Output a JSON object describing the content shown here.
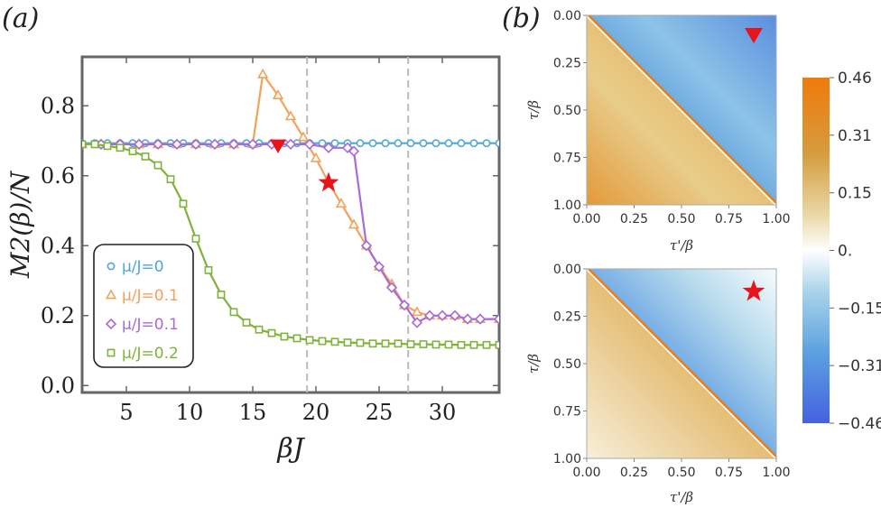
{
  "panel_labels": [
    "(a)",
    "(b)"
  ],
  "colors": {
    "blue": "#4fa7d8",
    "orange": "#f2a25a",
    "purple": "#a86bd6",
    "green": "#7fb33b",
    "marker_red": "#e8141b",
    "frame": "#666666",
    "vline": "#bbbbbb"
  },
  "chart_data": [
    {
      "type": "line",
      "panel": "(a)",
      "xlabel": "βJ",
      "ylabel": "M2(β)/N",
      "xlim": [
        1.5,
        34.5
      ],
      "ylim": [
        -0.02,
        0.94
      ],
      "xticks": [
        5,
        10,
        15,
        20,
        25,
        30
      ],
      "xtick_labels": [
        "5",
        "10",
        "15",
        "20",
        "25",
        "30"
      ],
      "yticks": [
        0.0,
        0.2,
        0.4,
        0.6,
        0.8
      ],
      "ytick_labels": [
        "0.0",
        "0.2",
        "0.4",
        "0.6",
        "0.8"
      ],
      "vlines": [
        19.3,
        27.3
      ],
      "legend_position": "lower-left",
      "series": [
        {
          "name": "μ/J=0",
          "marker": "circle",
          "color": "#4fa7d8",
          "x": [
            1.5,
            2.5,
            3.5,
            4.5,
            5.5,
            6.5,
            7.5,
            8.5,
            9.5,
            10.5,
            11.5,
            12.5,
            13.5,
            14.5,
            15.5,
            16.5,
            17.5,
            18.5,
            19.5,
            20.5,
            21.5,
            22.5,
            23.5,
            24.5,
            25.5,
            26.5,
            27.5,
            28.5,
            29.5,
            30.5,
            31.5,
            32.5,
            33.5,
            34.5
          ],
          "y": [
            0.693,
            0.693,
            0.693,
            0.693,
            0.693,
            0.693,
            0.693,
            0.693,
            0.693,
            0.693,
            0.693,
            0.693,
            0.693,
            0.693,
            0.693,
            0.693,
            0.693,
            0.693,
            0.693,
            0.693,
            0.693,
            0.693,
            0.693,
            0.693,
            0.693,
            0.693,
            0.693,
            0.693,
            0.693,
            0.693,
            0.693,
            0.693,
            0.693,
            0.693
          ]
        },
        {
          "name": "μ/J=0.1",
          "marker": "triangle",
          "color": "#f2a25a",
          "x": [
            1.5,
            3,
            4.5,
            6,
            7.5,
            9,
            10.5,
            12,
            13.5,
            15,
            15.8,
            17,
            18,
            19,
            20,
            21,
            22,
            23,
            24,
            25,
            26,
            27,
            28,
            29,
            30,
            31,
            32,
            33,
            34.5
          ],
          "y": [
            0.69,
            0.69,
            0.69,
            0.69,
            0.69,
            0.69,
            0.69,
            0.69,
            0.69,
            0.69,
            0.89,
            0.83,
            0.77,
            0.71,
            0.65,
            0.58,
            0.52,
            0.46,
            0.4,
            0.34,
            0.29,
            0.23,
            0.21,
            0.2,
            0.2,
            0.2,
            0.19,
            0.19,
            0.19
          ]
        },
        {
          "name": "μ/J=0.1",
          "marker": "diamond",
          "color": "#a86bd6",
          "x": [
            1.5,
            3,
            4.5,
            6,
            7.5,
            9,
            10.5,
            12,
            13.5,
            15,
            16.5,
            18,
            19.5,
            21,
            22.5,
            23,
            24,
            25,
            26,
            27,
            28,
            29,
            30,
            31,
            32,
            33,
            34.5
          ],
          "y": [
            0.69,
            0.69,
            0.69,
            0.69,
            0.69,
            0.69,
            0.69,
            0.69,
            0.69,
            0.69,
            0.69,
            0.69,
            0.69,
            0.68,
            0.68,
            0.67,
            0.4,
            0.34,
            0.28,
            0.23,
            0.18,
            0.2,
            0.2,
            0.2,
            0.19,
            0.19,
            0.19
          ]
        },
        {
          "name": "μ/J=0.2",
          "marker": "square",
          "color": "#7fb33b",
          "x": [
            1.5,
            2.5,
            3.5,
            4.5,
            5.5,
            6.5,
            7.5,
            8.5,
            9.5,
            10.5,
            11.5,
            12.5,
            13.5,
            14.5,
            15.5,
            16.5,
            17.5,
            18.5,
            19.5,
            20.5,
            21.5,
            22.5,
            23.5,
            24.5,
            25.5,
            26.5,
            27.5,
            28.5,
            29.5,
            30.5,
            31.5,
            32.5,
            33.5,
            34.5
          ],
          "y": [
            0.69,
            0.69,
            0.685,
            0.68,
            0.67,
            0.655,
            0.63,
            0.59,
            0.52,
            0.42,
            0.33,
            0.26,
            0.21,
            0.18,
            0.16,
            0.15,
            0.14,
            0.135,
            0.13,
            0.127,
            0.125,
            0.123,
            0.122,
            0.12,
            0.12,
            0.12,
            0.118,
            0.118,
            0.117,
            0.117,
            0.116,
            0.116,
            0.116,
            0.116
          ]
        }
      ],
      "markers": [
        {
          "symbol": "down-triangle",
          "color": "#e8141b",
          "x": 17,
          "y": 0.685
        },
        {
          "symbol": "star",
          "color": "#e8141b",
          "x": 21,
          "y": 0.58
        }
      ]
    },
    {
      "type": "heatmap",
      "panel": "(b) top",
      "xlabel": "τ'/β",
      "ylabel": "τ/β",
      "ticks": [
        "0.00",
        "0.25",
        "0.50",
        "0.75",
        "1.00"
      ],
      "marker": {
        "symbol": "down-triangle",
        "color": "#e8141b"
      },
      "lower_value_range": [
        0.15,
        0.46
      ],
      "upper_value_range": [
        -0.46,
        -0.2
      ]
    },
    {
      "type": "heatmap",
      "panel": "(b) bottom",
      "xlabel": "τ'/β",
      "ylabel": "τ/β",
      "ticks": [
        "0.00",
        "0.25",
        "0.50",
        "0.75",
        "1.00"
      ],
      "marker": {
        "symbol": "star",
        "color": "#e8141b"
      },
      "lower_value_range": [
        0.0,
        0.46
      ],
      "upper_value_range": [
        -0.46,
        0.0
      ]
    },
    {
      "type": "colorbar",
      "ticks": [
        "0.46",
        "0.31",
        "0.15",
        "0.",
        "−0.15",
        "−0.31",
        "−0.46"
      ],
      "range": [
        -0.46,
        0.46
      ]
    }
  ]
}
